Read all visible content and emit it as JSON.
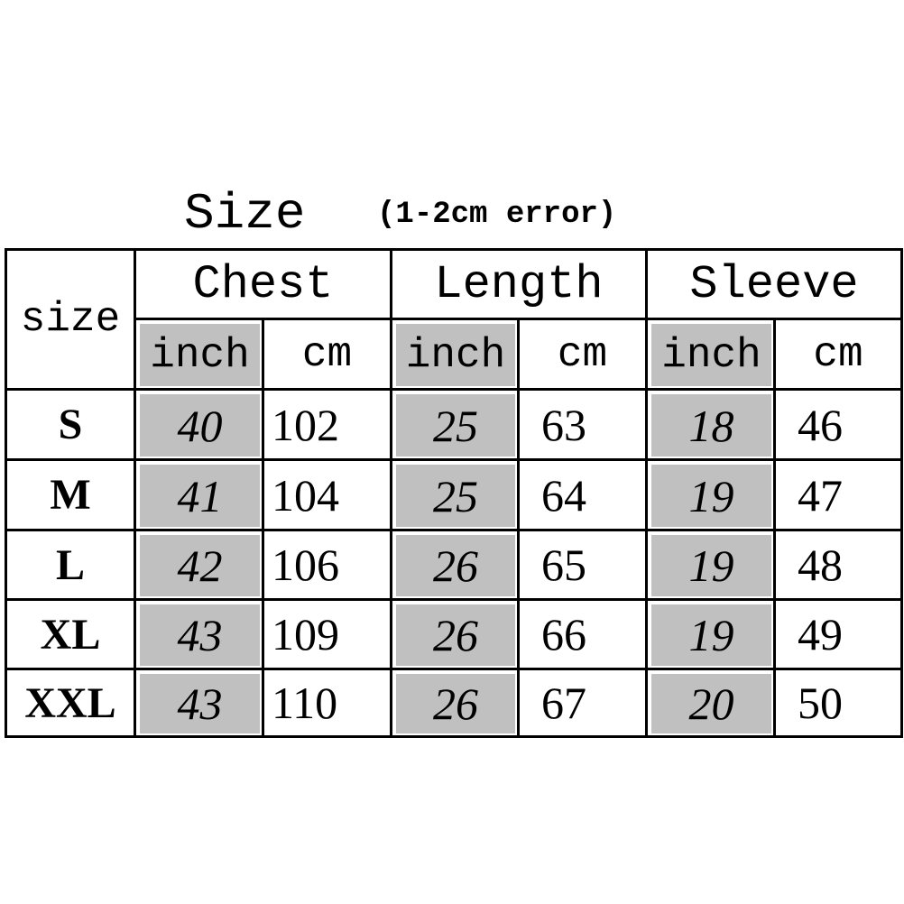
{
  "title": {
    "main": "Size",
    "note": "(1-2cm error)"
  },
  "table": {
    "size_header": "size",
    "groups": [
      "Chest",
      "Length",
      "Sleeve"
    ],
    "units": [
      "inch",
      "cm",
      "inch",
      "cm",
      "inch",
      "cm"
    ],
    "rows": [
      {
        "size": "S",
        "values": [
          "40",
          "102",
          "25",
          "63",
          "18",
          "46"
        ]
      },
      {
        "size": "M",
        "values": [
          "41",
          "104",
          "25",
          "64",
          "19",
          "47"
        ]
      },
      {
        "size": "L",
        "values": [
          "42",
          "106",
          "26",
          "65",
          "19",
          "48"
        ]
      },
      {
        "size": "XL",
        "values": [
          "43",
          "109",
          "26",
          "66",
          "19",
          "49"
        ]
      },
      {
        "size": "XXL",
        "values": [
          "43",
          "110",
          "26",
          "67",
          "20",
          "50"
        ]
      }
    ]
  },
  "colors": {
    "inch_cell_bg": "#c0c0c0",
    "border": "#000000"
  }
}
